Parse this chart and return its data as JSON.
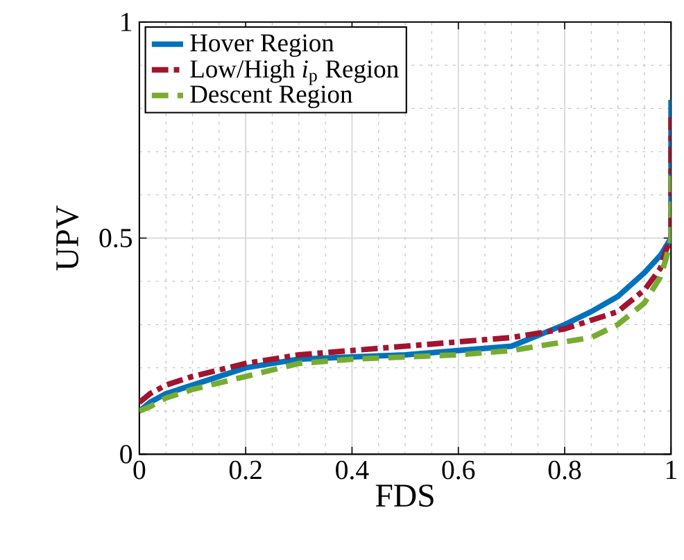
{
  "chart_data": {
    "type": "line",
    "xlabel": "FDS",
    "ylabel": "UPV",
    "xlim": [
      0,
      1
    ],
    "ylim": [
      0,
      1
    ],
    "xticks": [
      0,
      0.2,
      0.4,
      0.6,
      0.8,
      1
    ],
    "yticks": [
      0,
      0.5,
      1
    ],
    "grid": true,
    "legend": "top left",
    "x": [
      0,
      0.02,
      0.05,
      0.1,
      0.2,
      0.3,
      0.4,
      0.5,
      0.6,
      0.7,
      0.8,
      0.85,
      0.9,
      0.95,
      0.98,
      0.99,
      1,
      1
    ],
    "series": [
      {
        "name": "Hover Region",
        "color": "#0072bd",
        "line_style": "solid",
        "values": [
          0.1,
          0.12,
          0.14,
          0.16,
          0.2,
          0.22,
          0.225,
          0.23,
          0.24,
          0.25,
          0.3,
          0.33,
          0.365,
          0.42,
          0.46,
          0.48,
          0.5,
          0.82
        ]
      },
      {
        "name": "Low/High *i*$_{p}$ Region",
        "color": "#a2142f",
        "line_style": "dashdot",
        "values": [
          0.12,
          0.14,
          0.16,
          0.18,
          0.21,
          0.23,
          0.24,
          0.25,
          0.26,
          0.27,
          0.29,
          0.31,
          0.33,
          0.38,
          0.43,
          0.47,
          0.5,
          0.78
        ]
      },
      {
        "name": "Descent Region",
        "color": "#77ac30",
        "line_style": "dashed",
        "values": [
          0.1,
          0.11,
          0.13,
          0.15,
          0.18,
          0.21,
          0.22,
          0.225,
          0.23,
          0.24,
          0.26,
          0.27,
          0.3,
          0.35,
          0.41,
          0.45,
          0.5,
          0.65
        ]
      }
    ]
  }
}
